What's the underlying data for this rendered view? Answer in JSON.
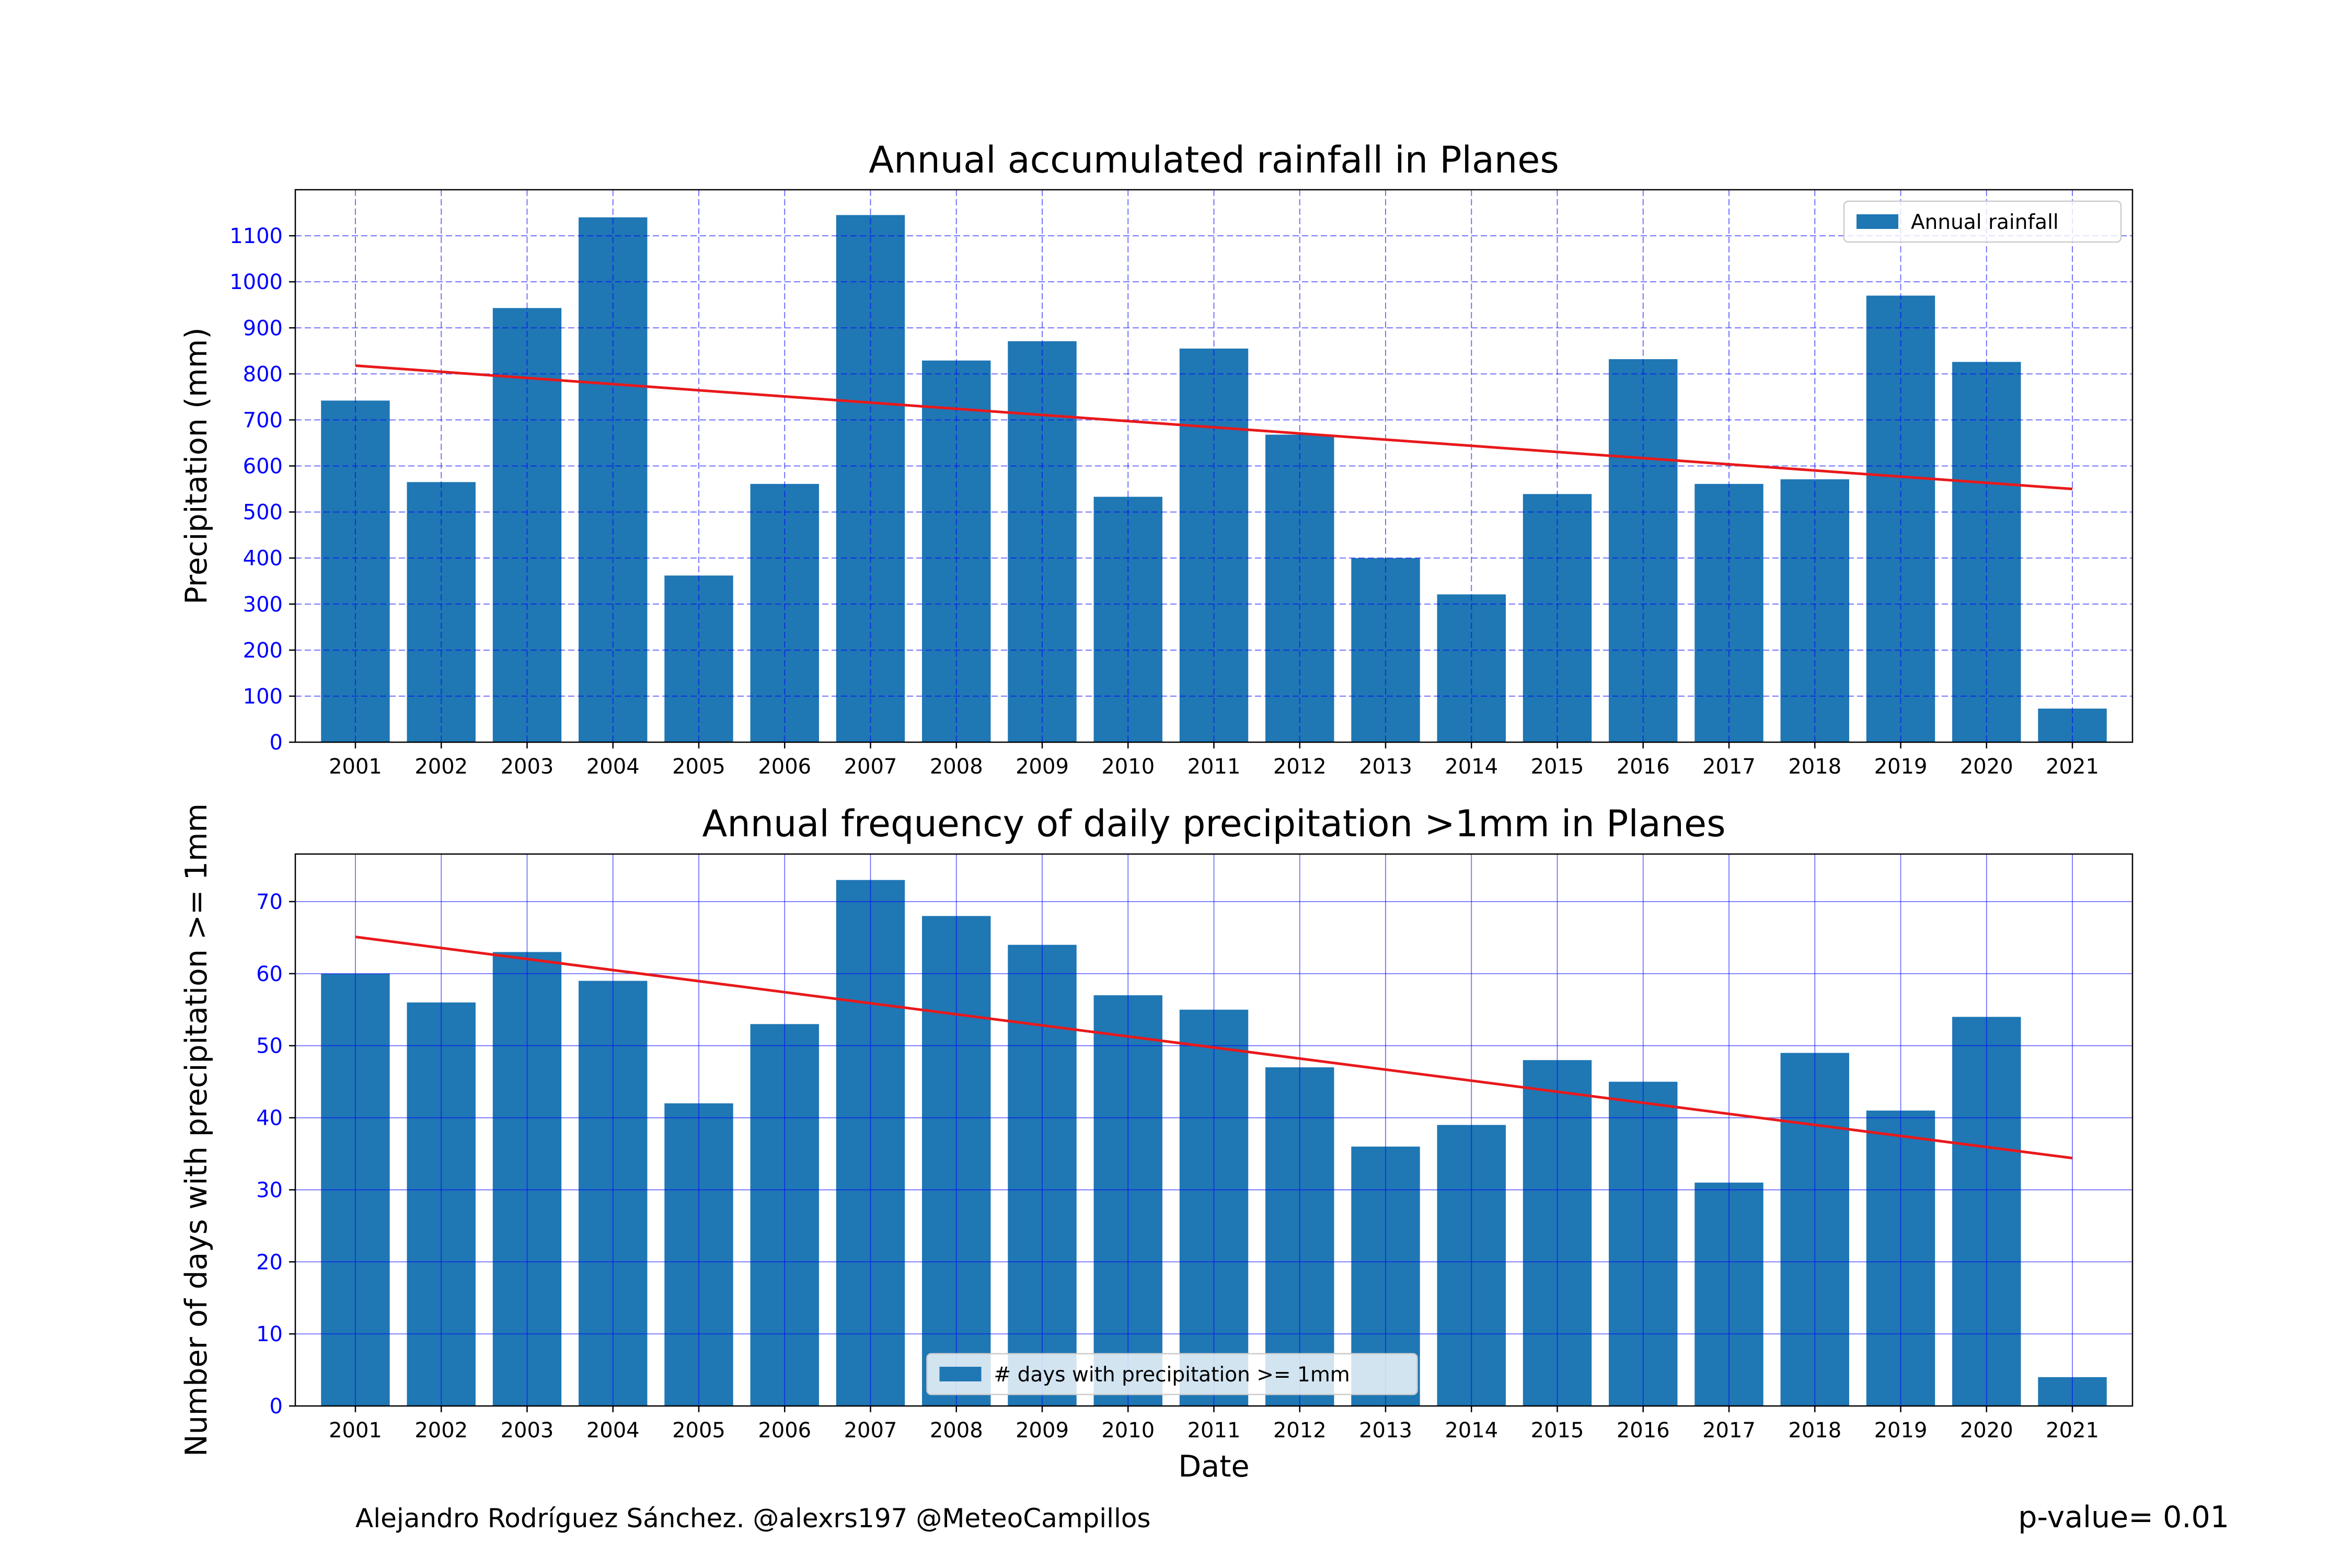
{
  "chart_data": [
    {
      "type": "bar",
      "title": "Annual accumulated rainfall in Planes",
      "xlabel": "",
      "ylabel": "Precipitation (mm)",
      "categories": [
        "2001",
        "2002",
        "2003",
        "2004",
        "2005",
        "2006",
        "2007",
        "2008",
        "2009",
        "2010",
        "2011",
        "2012",
        "2013",
        "2014",
        "2015",
        "2016",
        "2017",
        "2018",
        "2019",
        "2020",
        "2021"
      ],
      "series": [
        {
          "name": "Annual rainfall",
          "values": [
            742,
            565,
            943,
            1140,
            362,
            561,
            1145,
            829,
            871,
            533,
            855,
            668,
            400,
            321,
            539,
            832,
            561,
            571,
            970,
            826,
            73
          ]
        }
      ],
      "trend": {
        "start": 818,
        "end": 550
      },
      "yticks": [
        0,
        100,
        200,
        300,
        400,
        500,
        600,
        700,
        800,
        900,
        1000,
        1100
      ],
      "ylim": [
        0,
        1200
      ],
      "grid": true,
      "grid_style": "dashed",
      "legend_position": "top-right",
      "colors": {
        "bar": "#1f77b4",
        "trend": "#e8191b",
        "grid": "#0000ff",
        "tick_label": "#0000ff"
      }
    },
    {
      "type": "bar",
      "title": "Annual frequency of daily precipitation >1mm in Planes",
      "xlabel": "Date",
      "ylabel": "Number of days with precipitation >= 1mm",
      "categories": [
        "2001",
        "2002",
        "2003",
        "2004",
        "2005",
        "2006",
        "2007",
        "2008",
        "2009",
        "2010",
        "2011",
        "2012",
        "2013",
        "2014",
        "2015",
        "2016",
        "2017",
        "2018",
        "2019",
        "2020",
        "2021"
      ],
      "series": [
        {
          "name": "# days with precipitation >= 1mm",
          "values": [
            60,
            56,
            63,
            59,
            42,
            53,
            73,
            68,
            64,
            57,
            55,
            47,
            36,
            39,
            48,
            45,
            31,
            49,
            41,
            54,
            4
          ]
        }
      ],
      "trend": {
        "start": 65.1,
        "end": 34.4
      },
      "yticks": [
        0,
        10,
        20,
        30,
        40,
        50,
        60,
        70
      ],
      "ylim": [
        0,
        76.6
      ],
      "grid": true,
      "grid_style": "solid",
      "legend_position": "bottom-center",
      "colors": {
        "bar": "#1f77b4",
        "trend": "#e8191b",
        "grid": "#0000ff",
        "tick_label": "#0000ff"
      }
    }
  ],
  "footer": {
    "credit": "Alejandro Rodríguez Sánchez. @alexrs197 @MeteoCampillos",
    "pvalue": "p-value= 0.01"
  }
}
